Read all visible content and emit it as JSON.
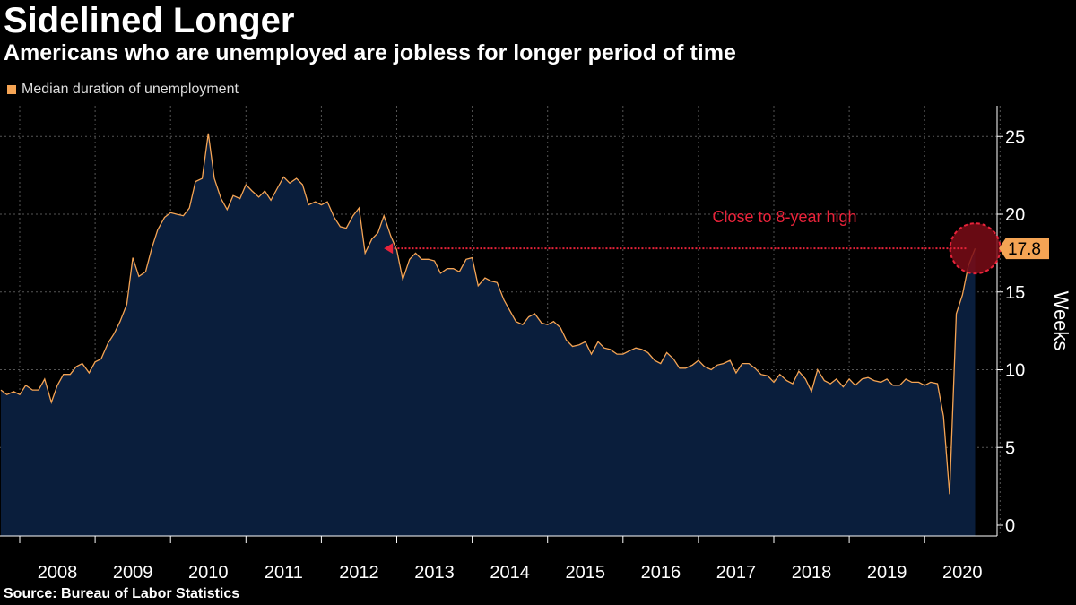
{
  "title": "Sidelined Longer",
  "subtitle": "Americans who are unemployed are jobless for longer period of time",
  "legend": {
    "label": "Median duration of unemployment",
    "color": "#f5a454"
  },
  "source": "Source: Bureau of Labor Statistics",
  "colors": {
    "line": "#f5a454",
    "area": "#0a1e3c",
    "grid": "#555555",
    "annotation": "#e8233a",
    "highlight_fill": "#7a0c16"
  },
  "chart_data": {
    "type": "area",
    "title": "Sidelined Longer",
    "subtitle": "Americans who are unemployed are jobless for longer period of time",
    "ylabel": "Weeks",
    "ylim": [
      0,
      27.5
    ],
    "yticks": [
      0,
      5,
      10,
      15,
      20,
      25
    ],
    "xlim": [
      2007.75,
      2020.92
    ],
    "xticks": [
      "2008",
      "2009",
      "2010",
      "2011",
      "2012",
      "2013",
      "2014",
      "2015",
      "2016",
      "2017",
      "2018",
      "2019",
      "2020"
    ],
    "grid": true,
    "legend_position": "top-left",
    "series": [
      {
        "name": "Median duration of unemployment",
        "x": [
          2007.75,
          2007.83,
          2007.92,
          2008.0,
          2008.08,
          2008.17,
          2008.25,
          2008.33,
          2008.42,
          2008.5,
          2008.58,
          2008.67,
          2008.75,
          2008.83,
          2008.92,
          2009.0,
          2009.08,
          2009.17,
          2009.25,
          2009.33,
          2009.42,
          2009.5,
          2009.58,
          2009.67,
          2009.75,
          2009.83,
          2009.92,
          2010.0,
          2010.08,
          2010.17,
          2010.25,
          2010.33,
          2010.42,
          2010.5,
          2010.58,
          2010.67,
          2010.75,
          2010.83,
          2010.92,
          2011.0,
          2011.08,
          2011.17,
          2011.25,
          2011.33,
          2011.42,
          2011.5,
          2011.58,
          2011.67,
          2011.75,
          2011.83,
          2011.92,
          2012.0,
          2012.08,
          2012.17,
          2012.25,
          2012.33,
          2012.42,
          2012.5,
          2012.58,
          2012.67,
          2012.75,
          2012.83,
          2012.92,
          2013.0,
          2013.08,
          2013.17,
          2013.25,
          2013.33,
          2013.42,
          2013.5,
          2013.58,
          2013.67,
          2013.75,
          2013.83,
          2013.92,
          2014.0,
          2014.08,
          2014.17,
          2014.25,
          2014.33,
          2014.42,
          2014.5,
          2014.58,
          2014.67,
          2014.75,
          2014.83,
          2014.92,
          2015.0,
          2015.08,
          2015.17,
          2015.25,
          2015.33,
          2015.42,
          2015.5,
          2015.58,
          2015.67,
          2015.75,
          2015.83,
          2015.92,
          2016.0,
          2016.08,
          2016.17,
          2016.25,
          2016.33,
          2016.42,
          2016.5,
          2016.58,
          2016.67,
          2016.75,
          2016.83,
          2016.92,
          2017.0,
          2017.08,
          2017.17,
          2017.25,
          2017.33,
          2017.42,
          2017.5,
          2017.58,
          2017.67,
          2017.75,
          2017.83,
          2017.92,
          2018.0,
          2018.08,
          2018.17,
          2018.25,
          2018.33,
          2018.42,
          2018.5,
          2018.58,
          2018.67,
          2018.75,
          2018.83,
          2018.92,
          2019.0,
          2019.08,
          2019.17,
          2019.25,
          2019.33,
          2019.42,
          2019.5,
          2019.58,
          2019.67,
          2019.75,
          2019.83,
          2019.92,
          2020.0,
          2020.08,
          2020.17,
          2020.25,
          2020.33,
          2020.42,
          2020.5,
          2020.58,
          2020.67
        ],
        "values": [
          8.7,
          8.4,
          8.6,
          8.4,
          9.0,
          8.7,
          8.7,
          9.4,
          7.9,
          9.0,
          9.7,
          9.7,
          10.2,
          10.4,
          9.8,
          10.5,
          10.7,
          11.7,
          12.3,
          13.1,
          14.2,
          17.2,
          16.0,
          16.3,
          17.8,
          19.0,
          19.8,
          20.1,
          20.0,
          19.9,
          20.4,
          22.1,
          22.3,
          25.2,
          22.3,
          21.0,
          20.3,
          21.2,
          21.0,
          21.9,
          21.5,
          21.1,
          21.5,
          20.9,
          21.7,
          22.4,
          22.0,
          22.3,
          21.9,
          20.6,
          20.8,
          20.6,
          20.8,
          19.8,
          19.2,
          19.1,
          19.9,
          20.4,
          17.5,
          18.4,
          18.8,
          19.9,
          18.6,
          17.7,
          15.8,
          17.1,
          17.5,
          17.1,
          17.1,
          17.0,
          16.2,
          16.5,
          16.5,
          16.3,
          17.1,
          17.2,
          15.4,
          15.9,
          15.7,
          15.6,
          14.5,
          13.8,
          13.1,
          12.9,
          13.4,
          13.6,
          13.0,
          12.9,
          13.1,
          12.7,
          11.9,
          11.5,
          11.6,
          11.8,
          11.0,
          11.8,
          11.4,
          11.3,
          11.0,
          11.0,
          11.2,
          11.4,
          11.3,
          11.1,
          10.6,
          10.4,
          11.1,
          10.7,
          10.1,
          10.1,
          10.3,
          10.6,
          10.2,
          10.0,
          10.3,
          10.4,
          10.6,
          9.8,
          10.4,
          10.4,
          10.1,
          9.7,
          9.6,
          9.2,
          9.7,
          9.3,
          9.1,
          9.9,
          9.4,
          8.6,
          10.0,
          9.3,
          9.1,
          9.4,
          8.9,
          9.4,
          9.0,
          9.4,
          9.5,
          9.3,
          9.2,
          9.4,
          9.0,
          9.0,
          9.4,
          9.2,
          9.2,
          9.0,
          9.2,
          9.1,
          7.0,
          2.0,
          13.6,
          14.8,
          16.7,
          17.8
        ]
      }
    ],
    "last_value_label": "17.8",
    "annotations": [
      {
        "text": "Close to 8-year high",
        "arrow_from": 2020.55,
        "arrow_to": 2012.83,
        "y": 17.8,
        "circle_at": 2020.67
      }
    ]
  }
}
